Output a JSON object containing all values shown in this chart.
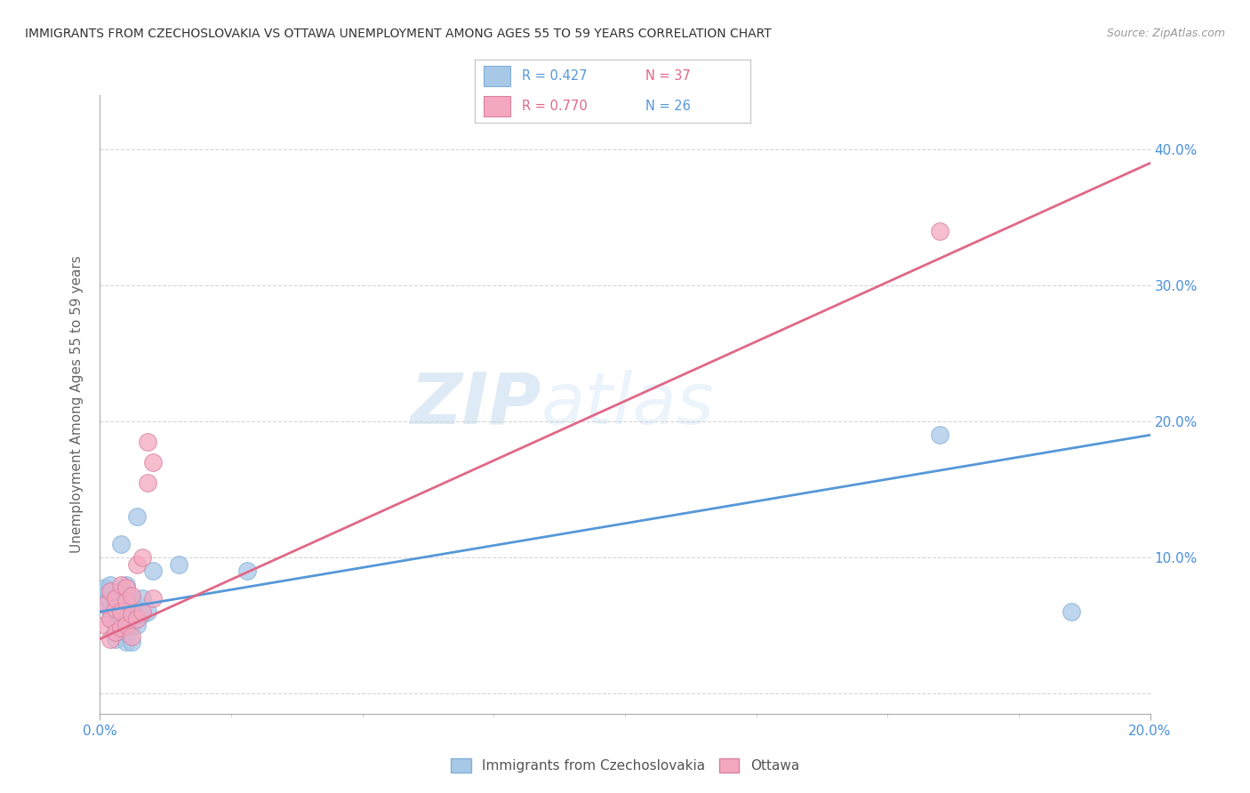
{
  "title": "IMMIGRANTS FROM CZECHOSLOVAKIA VS OTTAWA UNEMPLOYMENT AMONG AGES 55 TO 59 YEARS CORRELATION CHART",
  "source": "Source: ZipAtlas.com",
  "ylabel_label": "Unemployment Among Ages 55 to 59 years",
  "xlim": [
    0.0,
    0.2
  ],
  "ylim": [
    -0.015,
    0.44
  ],
  "yticks": [
    0.0,
    0.1,
    0.2,
    0.3,
    0.4
  ],
  "yticks_right": [
    0.1,
    0.2,
    0.3,
    0.4
  ],
  "ytick_right_labels": [
    "10.0%",
    "20.0%",
    "30.0%",
    "40.0%"
  ],
  "legend_blue_r": "R = 0.427",
  "legend_blue_n": "N = 37",
  "legend_pink_r": "R = 0.770",
  "legend_pink_n": "N = 26",
  "blue_color": "#a8c8e8",
  "pink_color": "#f4a8c0",
  "blue_line_color": "#5598d8",
  "pink_line_color": "#e06888",
  "legend_r_color_blue": "#5598d8",
  "legend_r_color_pink": "#e06888",
  "legend_n_color_blue": "#e06888",
  "legend_n_color_pink": "#5598d8",
  "watermark_zip": "ZIP",
  "watermark_atlas": "atlas",
  "blue_scatter_x": [
    0.001,
    0.001,
    0.001,
    0.002,
    0.002,
    0.002,
    0.002,
    0.002,
    0.003,
    0.003,
    0.003,
    0.003,
    0.003,
    0.004,
    0.004,
    0.004,
    0.004,
    0.005,
    0.005,
    0.005,
    0.005,
    0.005,
    0.006,
    0.006,
    0.006,
    0.006,
    0.007,
    0.007,
    0.007,
    0.008,
    0.008,
    0.009,
    0.01,
    0.015,
    0.028,
    0.16,
    0.185
  ],
  "blue_scatter_y": [
    0.065,
    0.072,
    0.078,
    0.06,
    0.068,
    0.075,
    0.08,
    0.055,
    0.04,
    0.045,
    0.05,
    0.065,
    0.07,
    0.055,
    0.06,
    0.075,
    0.11,
    0.038,
    0.045,
    0.055,
    0.065,
    0.08,
    0.038,
    0.05,
    0.058,
    0.07,
    0.05,
    0.065,
    0.13,
    0.058,
    0.07,
    0.06,
    0.09,
    0.095,
    0.09,
    0.19,
    0.06
  ],
  "pink_scatter_x": [
    0.001,
    0.001,
    0.002,
    0.002,
    0.002,
    0.003,
    0.003,
    0.003,
    0.004,
    0.004,
    0.004,
    0.005,
    0.005,
    0.005,
    0.006,
    0.006,
    0.006,
    0.007,
    0.007,
    0.008,
    0.008,
    0.009,
    0.009,
    0.01,
    0.01,
    0.16
  ],
  "pink_scatter_y": [
    0.05,
    0.065,
    0.04,
    0.055,
    0.075,
    0.045,
    0.062,
    0.07,
    0.048,
    0.06,
    0.08,
    0.05,
    0.068,
    0.078,
    0.042,
    0.058,
    0.072,
    0.055,
    0.095,
    0.06,
    0.1,
    0.155,
    0.185,
    0.07,
    0.17,
    0.34
  ],
  "blue_line_x": [
    0.0,
    0.2
  ],
  "blue_line_y": [
    0.06,
    0.19
  ],
  "pink_line_x": [
    0.0,
    0.2
  ],
  "pink_line_y": [
    0.04,
    0.39
  ]
}
